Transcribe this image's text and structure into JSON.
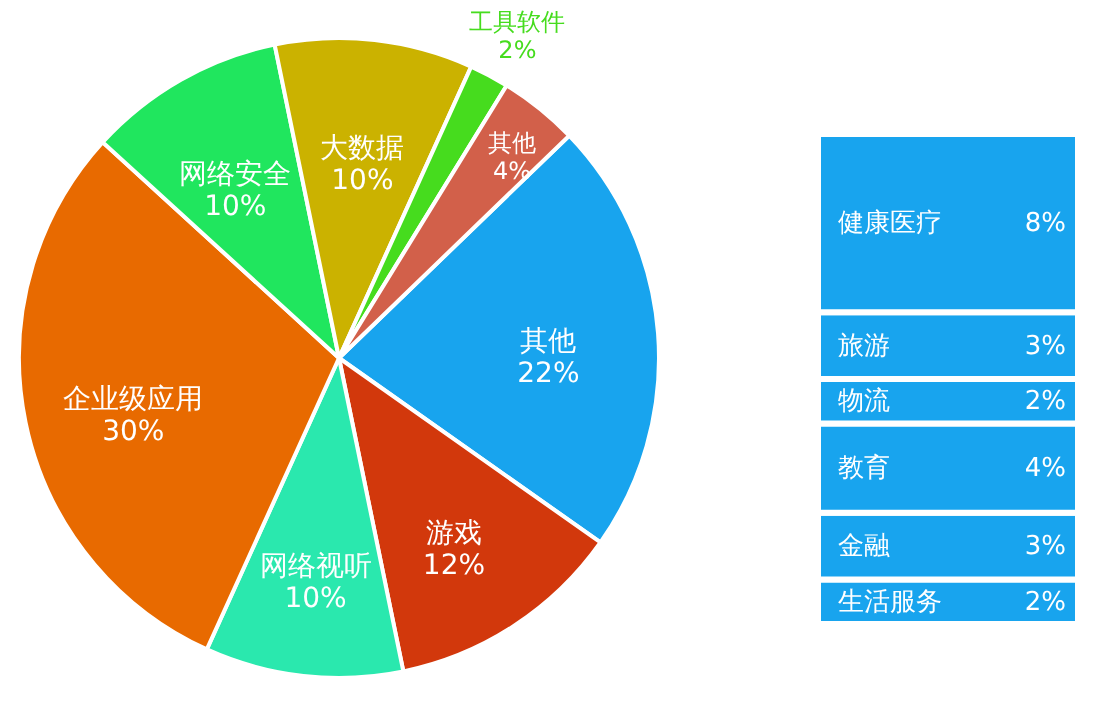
{
  "chart_data": [
    {
      "type": "pie",
      "categories": [
        "其他",
        "游戏",
        "网络视听",
        "企业级应用",
        "网络安全",
        "大数据",
        "工具软件",
        "其他"
      ],
      "values": [
        22,
        12,
        10,
        30,
        10,
        10,
        2,
        4
      ],
      "value_labels": [
        "22%",
        "12%",
        "10%",
        "30%",
        "10%",
        "10%",
        "2%",
        "4%"
      ],
      "colors": [
        "#18a4ee",
        "#d2380c",
        "#2ae8ae",
        "#e86a00",
        "#20e65e",
        "#cbb200",
        "#46dc1e",
        "#d2604a"
      ],
      "legend": false
    },
    {
      "type": "bar",
      "stacked": true,
      "categories": [
        null
      ],
      "legend": false,
      "series": [
        {
          "name": "生活服务",
          "color": "#18a4ee",
          "values": [
            2
          ],
          "value_labels": [
            "2%"
          ]
        },
        {
          "name": "金融",
          "color": "#18a4ee",
          "values": [
            3
          ],
          "value_labels": [
            "3%"
          ]
        },
        {
          "name": "教育",
          "color": "#18a4ee",
          "values": [
            4
          ],
          "value_labels": [
            "4%"
          ]
        },
        {
          "name": "物流",
          "color": "#18a4ee",
          "values": [
            2
          ],
          "value_labels": [
            "2%"
          ]
        },
        {
          "name": "旅游",
          "color": "#18a4ee",
          "values": [
            3
          ],
          "value_labels": [
            "3%"
          ]
        },
        {
          "name": "健康医疗",
          "color": "#18a4ee",
          "values": [
            8
          ],
          "value_labels": [
            "8%"
          ]
        }
      ]
    }
  ]
}
